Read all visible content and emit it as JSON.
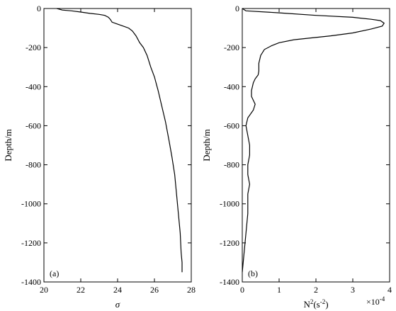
{
  "chart_data": [
    {
      "panel_label": "(a)",
      "type": "line",
      "xlabel": "σ",
      "ylabel": "Depth/m",
      "xlim": [
        20,
        28
      ],
      "ylim": [
        -1400,
        0
      ],
      "xticks": [
        20,
        22,
        24,
        26,
        28
      ],
      "yticks": [
        0,
        -200,
        -400,
        -600,
        -800,
        -1000,
        -1200,
        -1400
      ],
      "grid": false,
      "series": [
        {
          "x": [
            20.7,
            21.0,
            21.5,
            22.0,
            22.5,
            23.0,
            23.3,
            23.5,
            23.6,
            23.7,
            24.0,
            24.3,
            24.6,
            24.8,
            25.0,
            25.2,
            25.4,
            25.6,
            25.7,
            25.8,
            26.0,
            26.2,
            26.4,
            26.6,
            26.8,
            26.95,
            27.1,
            27.2,
            27.3,
            27.4,
            27.45,
            27.5,
            27.5
          ],
          "y": [
            0,
            -8,
            -12,
            -18,
            -25,
            -30,
            -35,
            -45,
            -55,
            -70,
            -80,
            -90,
            -100,
            -115,
            -140,
            -175,
            -200,
            -240,
            -270,
            -300,
            -350,
            -420,
            -500,
            -580,
            -680,
            -760,
            -850,
            -950,
            -1050,
            -1150,
            -1250,
            -1300,
            -1350
          ]
        }
      ]
    },
    {
      "panel_label": "(b)",
      "type": "line",
      "xlabel": "N²(s⁻²)",
      "xlabel_base": "N",
      "xlabel_sup1": "2",
      "xlabel_mid": "(s",
      "xlabel_sup2": "-2",
      "xlabel_end": ")",
      "x_multiplier": "×10",
      "x_multiplier_exp": "-4",
      "ylabel": "Depth/m",
      "xlim": [
        0,
        4
      ],
      "ylim": [
        -1400,
        0
      ],
      "xticks": [
        0,
        1,
        2,
        3,
        4
      ],
      "yticks": [
        0,
        -200,
        -400,
        -600,
        -800,
        -1000,
        -1200,
        -1400
      ],
      "grid": false,
      "series": [
        {
          "x": [
            0,
            0.1,
            1.0,
            2.0,
            3.0,
            3.5,
            3.75,
            3.85,
            3.8,
            3.5,
            3.0,
            2.4,
            1.9,
            1.4,
            1.0,
            0.8,
            0.6,
            0.5,
            0.45,
            0.45,
            0.43,
            0.35,
            0.3,
            0.25,
            0.25,
            0.3,
            0.35,
            0.3,
            0.15,
            0.1,
            0.15,
            0.2,
            0.2,
            0.15,
            0.15,
            0.2,
            0.15,
            0.15,
            0.1,
            0.05,
            0
          ],
          "y": [
            0,
            -12,
            -22,
            -35,
            -45,
            -55,
            -62,
            -75,
            -90,
            -105,
            -125,
            -140,
            -150,
            -160,
            -175,
            -190,
            -210,
            -240,
            -280,
            -320,
            -340,
            -360,
            -380,
            -420,
            -450,
            -470,
            -490,
            -520,
            -560,
            -600,
            -650,
            -700,
            -750,
            -800,
            -850,
            -900,
            -950,
            -1050,
            -1150,
            -1250,
            -1350
          ]
        }
      ]
    }
  ]
}
